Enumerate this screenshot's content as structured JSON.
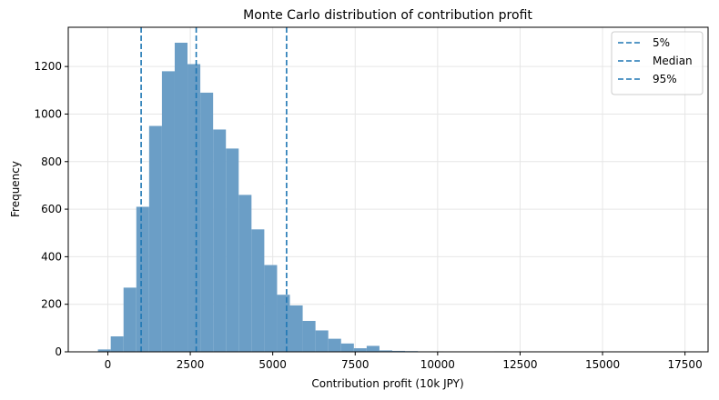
{
  "chart_data": {
    "type": "bar",
    "title": "Monte Carlo distribution of contribution profit",
    "xlabel": "Contribution profit (10k JPY)",
    "ylabel": "Frequency",
    "xlim": [
      -1200,
      18200
    ],
    "ylim": [
      0,
      1365
    ],
    "xticks": [
      0,
      2500,
      5000,
      7500,
      10000,
      12500,
      15000,
      17500
    ],
    "yticks": [
      0,
      200,
      400,
      600,
      800,
      1000,
      1200
    ],
    "grid": true,
    "legend_position": "top-right",
    "bar_color": "#6b9ec6",
    "bins": {
      "edges": [
        -300,
        88,
        476,
        864,
        1252,
        1640,
        2028,
        2416,
        2804,
        3192,
        3580,
        3968,
        4356,
        4744,
        5132,
        5520,
        5908,
        6296,
        6684,
        7072,
        7460,
        7848,
        8236,
        8624,
        9012,
        9400,
        9788,
        10176,
        10564,
        10952,
        11340,
        11728,
        12116,
        12504,
        12892,
        13280,
        13668,
        14056,
        14444,
        14832,
        15220,
        15608,
        15996,
        16384,
        16772,
        17160,
        17548
      ],
      "counts": [
        10,
        65,
        270,
        610,
        950,
        1180,
        1300,
        1210,
        1090,
        935,
        855,
        660,
        515,
        365,
        240,
        195,
        130,
        90,
        55,
        35,
        15,
        25,
        6,
        4,
        3,
        2,
        2,
        1,
        1,
        0,
        0,
        2,
        0,
        0,
        1,
        0,
        0,
        0,
        0,
        0,
        0,
        0,
        0,
        0,
        1,
        0
      ]
    },
    "reference_lines": [
      {
        "name": "5%",
        "x": 1010,
        "color": "#1f77b4",
        "style": "dashed"
      },
      {
        "name": "Median",
        "x": 2680,
        "color": "#1f77b4",
        "style": "dashed"
      },
      {
        "name": "95%",
        "x": 5420,
        "color": "#1f77b4",
        "style": "dashed"
      }
    ]
  }
}
